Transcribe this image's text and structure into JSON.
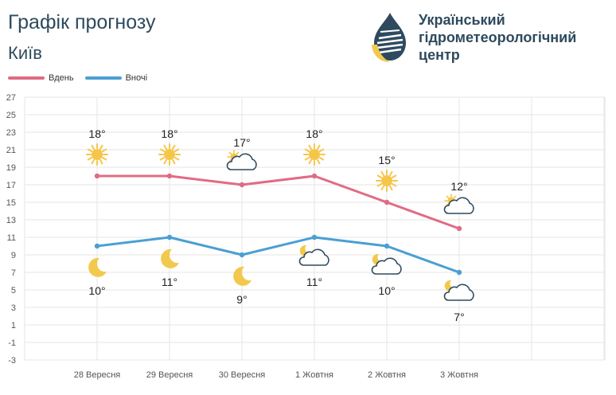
{
  "header": {
    "title": "Графік прогнозу",
    "subtitle": "Київ"
  },
  "logo": {
    "line1": "Український",
    "line2": "гідрометеорологічний",
    "line3": "центр",
    "colors": {
      "text": "#2e4a5e",
      "accent": "#f2c94c"
    }
  },
  "colors": {
    "day": "#e06c84",
    "night": "#4a9fd4",
    "grid": "#e6e6e6",
    "axis_text": "#555555",
    "sun": "#f6c64a",
    "moon": "#f2c94c",
    "cloud_stroke": "#2e4a5e"
  },
  "chart_data": {
    "type": "line",
    "categories": [
      "28 Вересня",
      "29 Вересня",
      "30 Вересня",
      "1 Жовтня",
      "2 Жовтня",
      "3 Жовтня"
    ],
    "series": [
      {
        "name": "Вдень",
        "values": [
          18,
          18,
          17,
          18,
          15,
          12
        ],
        "labels": [
          "18°",
          "18°",
          "17°",
          "18°",
          "15°",
          "12°"
        ]
      },
      {
        "name": "Вночі",
        "values": [
          10,
          11,
          9,
          11,
          10,
          7
        ],
        "labels": [
          "10°",
          "11°",
          "9°",
          "11°",
          "10°",
          "7°"
        ]
      }
    ],
    "day_icons": [
      "sun-icon",
      "sun-icon",
      "cloud-sun-icon",
      "sun-icon",
      "sun-icon",
      "cloud-sun-icon"
    ],
    "night_icons": [
      "moon-icon",
      "moon-icon",
      "moon-icon",
      "cloud-moon-icon",
      "cloud-moon-icon",
      "cloud-moon-icon"
    ],
    "ylim": [
      -3,
      27
    ],
    "yticks": [
      27,
      25,
      23,
      21,
      19,
      17,
      15,
      13,
      11,
      9,
      7,
      5,
      3,
      1,
      -1,
      -3
    ],
    "grid": true,
    "legend_position": "top-left"
  }
}
